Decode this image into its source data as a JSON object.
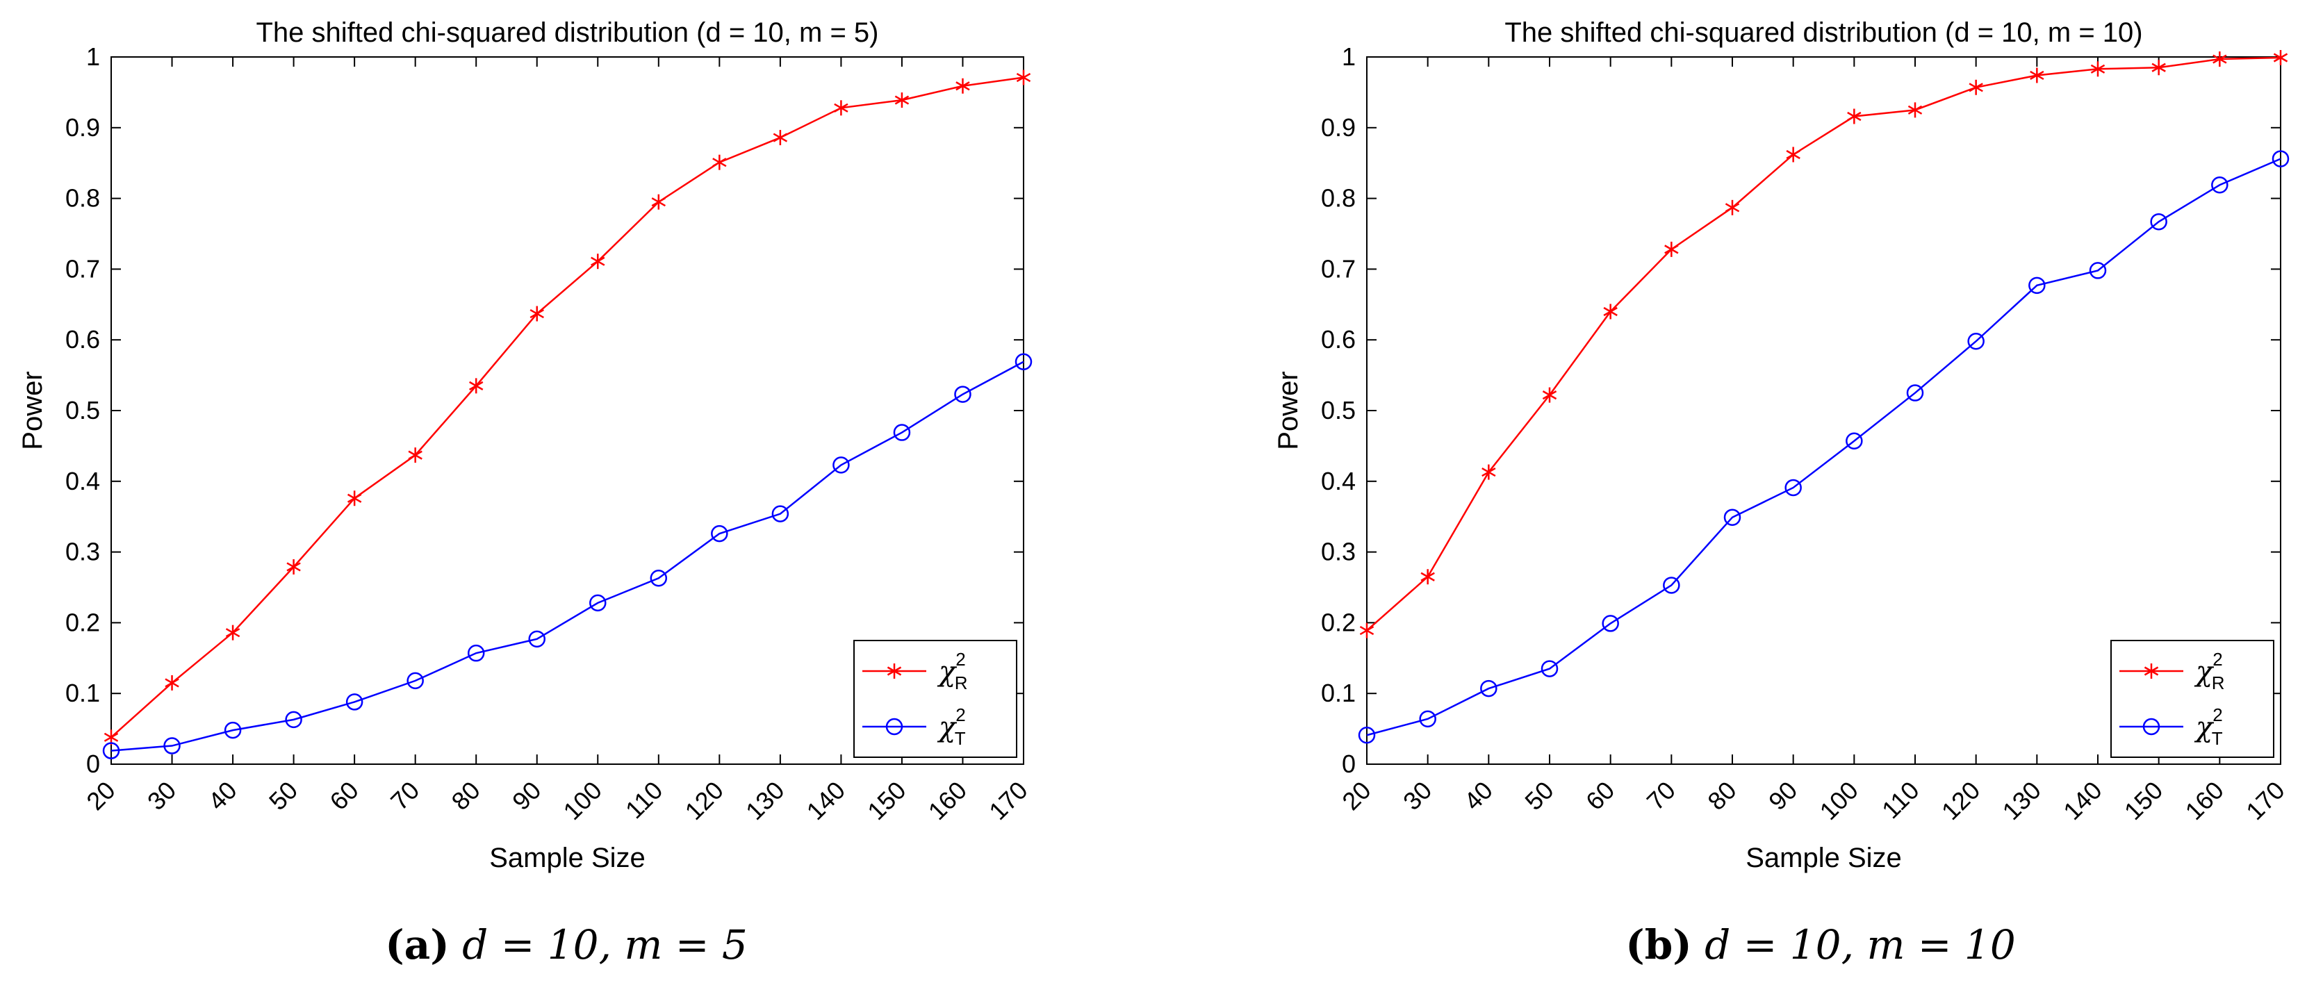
{
  "colors": {
    "red": "#ff0000",
    "blue": "#0000ff"
  },
  "chart_data": [
    {
      "type": "line",
      "title": "The shifted chi-squared distribution (d = 10, m = 5)",
      "xlabel": "Sample Size",
      "ylabel": "Power",
      "x": [
        20,
        30,
        40,
        50,
        60,
        70,
        80,
        90,
        100,
        110,
        120,
        130,
        140,
        150,
        160,
        170
      ],
      "xlim": [
        20,
        170
      ],
      "ylim": [
        0,
        1
      ],
      "yticks": [
        0,
        0.1,
        0.2,
        0.3,
        0.4,
        0.5,
        0.6,
        0.7,
        0.8,
        0.9,
        1
      ],
      "ytick_labels": [
        "0",
        "0.1",
        "0.2",
        "0.3",
        "0.4",
        "0.5",
        "0.6",
        "0.7",
        "0.8",
        "0.9",
        "1"
      ],
      "legend_position": "bottom-right",
      "series": [
        {
          "name": "χR2",
          "legend_main": "χ",
          "legend_sup": "2",
          "legend_sub": "R",
          "color": "#ff0000",
          "marker": "asterisk",
          "values": [
            0.038,
            0.115,
            0.186,
            0.279,
            0.376,
            0.437,
            0.535,
            0.637,
            0.711,
            0.795,
            0.851,
            0.886,
            0.928,
            0.939,
            0.959,
            0.971
          ]
        },
        {
          "name": "χT2",
          "legend_main": "χ",
          "legend_sup": "2",
          "legend_sub": "T",
          "color": "#0000ff",
          "marker": "circle",
          "values": [
            0.019,
            0.026,
            0.048,
            0.063,
            0.088,
            0.118,
            0.157,
            0.177,
            0.228,
            0.263,
            0.326,
            0.354,
            0.423,
            0.469,
            0.523,
            0.569
          ]
        }
      ],
      "caption": {
        "label": "(a)",
        "text": "d = 10, m = 5"
      }
    },
    {
      "type": "line",
      "title": "The shifted chi-squared distribution (d = 10, m = 10)",
      "xlabel": "Sample Size",
      "ylabel": "Power",
      "x": [
        20,
        30,
        40,
        50,
        60,
        70,
        80,
        90,
        100,
        110,
        120,
        130,
        140,
        150,
        160,
        170
      ],
      "xlim": [
        20,
        170
      ],
      "ylim": [
        0,
        1
      ],
      "yticks": [
        0,
        0.1,
        0.2,
        0.3,
        0.4,
        0.5,
        0.6,
        0.7,
        0.8,
        0.9,
        1
      ],
      "ytick_labels": [
        "0",
        "0.1",
        "0.2",
        "0.3",
        "0.4",
        "0.5",
        "0.6",
        "0.7",
        "0.8",
        "0.9",
        "1"
      ],
      "legend_position": "bottom-right",
      "series": [
        {
          "name": "χR2",
          "legend_main": "χ",
          "legend_sup": "2",
          "legend_sub": "R",
          "color": "#ff0000",
          "marker": "asterisk",
          "values": [
            0.189,
            0.265,
            0.413,
            0.522,
            0.64,
            0.728,
            0.787,
            0.862,
            0.916,
            0.925,
            0.957,
            0.974,
            0.983,
            0.985,
            0.997,
            0.999
          ]
        },
        {
          "name": "χT2",
          "legend_main": "χ",
          "legend_sup": "2",
          "legend_sub": "T",
          "color": "#0000ff",
          "marker": "circle",
          "values": [
            0.041,
            0.064,
            0.107,
            0.135,
            0.199,
            0.253,
            0.349,
            0.391,
            0.457,
            0.525,
            0.598,
            0.677,
            0.698,
            0.767,
            0.819,
            0.856
          ]
        }
      ],
      "caption": {
        "label": "(b)",
        "text": "d = 10, m = 10"
      }
    }
  ]
}
